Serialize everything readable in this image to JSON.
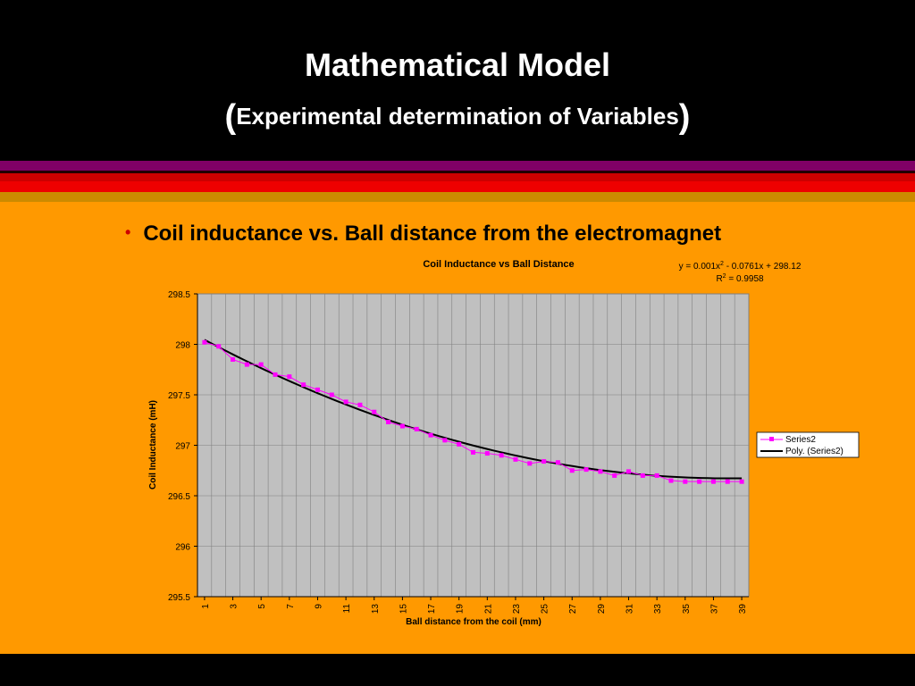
{
  "slide": {
    "title": "Mathematical Model",
    "subtitle_open": "(",
    "subtitle": "Experimental determination of Variables",
    "subtitle_close": ")",
    "bullet": "Coil inductance vs. Ball distance from the electromagnet"
  },
  "colors": {
    "background": "#000000",
    "content": "#ff9900",
    "stripe_purple": "#800066",
    "stripe_red": "#cc0000",
    "stripe_orange": "#cc8a00",
    "plot_area": "#c0c0c0",
    "series_marker": "#ff00ff",
    "trendline": "#000000"
  },
  "chart_data": {
    "type": "scatter",
    "title": "Coil Inductance vs Ball Distance",
    "xlabel": "Ball distance from the coil (mm)",
    "ylabel": "Coil Inductance (mH)",
    "equation": "y = 0.001x² - 0.0761x + 298.12",
    "r_squared": "R² = 0.9958",
    "ylim": [
      295.5,
      298.5
    ],
    "y_ticks": [
      "298.5",
      "298",
      "297.5",
      "297",
      "296.5",
      "296",
      "295.5"
    ],
    "x_ticks": [
      "1",
      "3",
      "5",
      "7",
      "9",
      "11",
      "13",
      "15",
      "17",
      "19",
      "21",
      "23",
      "25",
      "27",
      "29",
      "31",
      "33",
      "35",
      "37",
      "39"
    ],
    "grid": true,
    "legend_position": "right",
    "series": [
      {
        "name": "Series2",
        "x": [
          1,
          2,
          3,
          4,
          5,
          6,
          7,
          8,
          9,
          10,
          11,
          12,
          13,
          14,
          15,
          16,
          17,
          18,
          19,
          20,
          21,
          22,
          23,
          24,
          25,
          26,
          27,
          28,
          29,
          30,
          31,
          32,
          33,
          34,
          35,
          36,
          37,
          38,
          39
        ],
        "values": [
          298.02,
          297.98,
          297.85,
          297.8,
          297.8,
          297.7,
          297.68,
          297.6,
          297.55,
          297.5,
          297.43,
          297.4,
          297.33,
          297.23,
          297.19,
          297.16,
          297.1,
          297.05,
          297.01,
          296.93,
          296.92,
          296.9,
          296.86,
          296.82,
          296.84,
          296.83,
          296.75,
          296.76,
          296.74,
          296.7,
          296.74,
          296.7,
          296.7,
          296.65,
          296.64,
          296.64,
          296.64,
          296.64,
          296.64
        ]
      },
      {
        "name": "Poly. (Series2)",
        "trend_coefficients": [
          0.001,
          -0.0761,
          298.12
        ]
      }
    ]
  }
}
